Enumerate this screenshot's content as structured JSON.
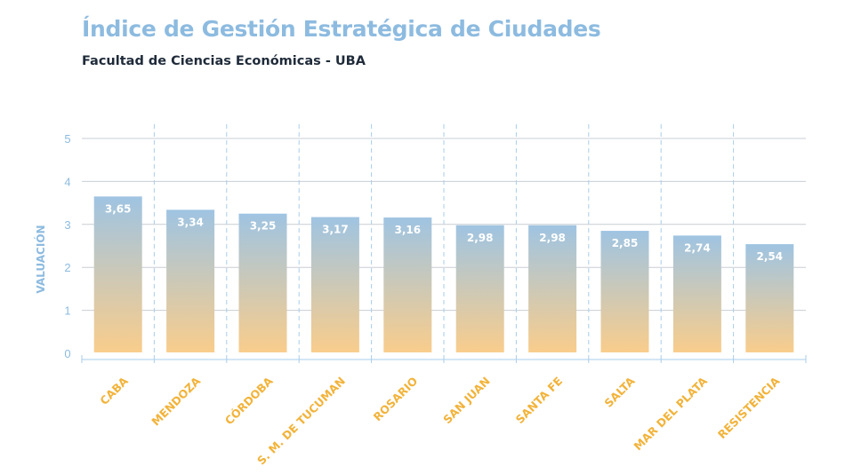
{
  "header": {
    "title": "Índice de Gestión Estratégica de Ciudades",
    "subtitle": "Facultad de Ciencias Económicas - UBA"
  },
  "colors": {
    "title": "#8dbbe0",
    "subtitle": "#1f2b3a",
    "axis_text": "#8dbbe0",
    "category_text": "#f2b33a",
    "bar_top": "#9fc4e2",
    "bar_bottom": "#f9cd8c",
    "grid": "#c9ced4",
    "separator": "#a9cdea",
    "value_text": "#ffffff"
  },
  "chart_data": {
    "type": "bar",
    "title": "Índice de Gestión Estratégica de Ciudades",
    "subtitle": "Facultad de Ciencias Económicas - UBA",
    "xlabel": "",
    "ylabel": "VALUACIÓN",
    "ylim": [
      0,
      5
    ],
    "yticks": [
      "0",
      "1",
      "2",
      "3",
      "4",
      "5"
    ],
    "grid": true,
    "categories": [
      "CABA",
      "MENDOZA",
      "CÓRDOBA",
      "S. M. DE TUCUMAN",
      "ROSARIO",
      "SAN JUAN",
      "SANTA FE",
      "SALTA",
      "MAR DEL PLATA",
      "RESISTENCIA"
    ],
    "values": [
      3.65,
      3.34,
      3.25,
      3.17,
      3.16,
      2.98,
      2.98,
      2.85,
      2.74,
      2.54
    ],
    "value_labels": [
      "3,65",
      "3,34",
      "3,25",
      "3,17",
      "3,16",
      "2,98",
      "2,98",
      "2,85",
      "2,74",
      "2,54"
    ]
  }
}
